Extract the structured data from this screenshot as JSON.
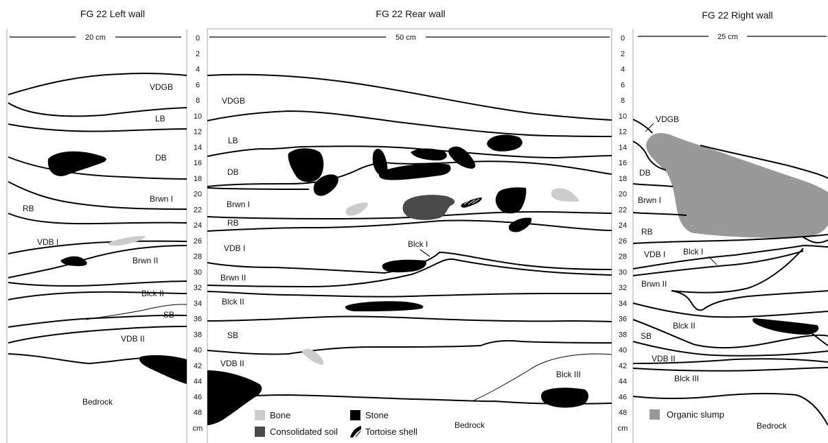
{
  "titles": {
    "left": "FG 22 Left wall",
    "rear": "FG 22 Rear wall",
    "right": "FG 22 Right wall"
  },
  "scale_bars": {
    "left": "20 cm",
    "rear": "50 cm",
    "right": "25 cm"
  },
  "depth_ticks": [
    "0",
    "2",
    "4",
    "6",
    "8",
    "10",
    "12",
    "14",
    "16",
    "18",
    "20",
    "22",
    "24",
    "26",
    "28",
    "30",
    "32",
    "34",
    "36",
    "38",
    "40",
    "42",
    "44",
    "46",
    "48",
    "cm"
  ],
  "left_labels": {
    "vdgb": "VDGB",
    "lb": "LB",
    "db": "DB",
    "brwn1": "Brwn I",
    "rb": "RB",
    "vdb1": "VDB I",
    "brwn2": "Brwn II",
    "blck2": "Blck II",
    "sb": "SB",
    "vdb2": "VDB II",
    "bedrock": "Bedrock"
  },
  "rear_labels": {
    "vdgb": "VDGB",
    "lb": "LB",
    "db": "DB",
    "brwn1": "Brwn I",
    "rb": "RB",
    "vdb1": "VDB I",
    "blck1": "Blck I",
    "brwn2": "Brwn II",
    "blck2": "Blck II",
    "sb": "SB",
    "vdb2": "VDB II",
    "blck3": "Blck III",
    "bedrock": "Bedrock"
  },
  "right_labels": {
    "vdgb": "VDGB",
    "db": "DB",
    "brwn1": "Brwn I",
    "rb": "RB",
    "vdb1": "VDB I",
    "blck1": "Blck I",
    "brwn2": "Brwn II",
    "blck2": "Blck II",
    "sb": "SB",
    "vdb2": "VDB II",
    "blck3": "Blck III",
    "bedrock": "Bedrock"
  },
  "legend": {
    "bone": "Bone",
    "stone": "Stone",
    "consolidated_soil": "Consolidated soil",
    "tortoise_shell": "Tortoise shell",
    "organic_slump": "Organic slump"
  },
  "colors": {
    "bone": "#cccccc",
    "stone": "#000000",
    "consolidated_soil": "#4a4a4a",
    "organic_slump": "#999999"
  }
}
